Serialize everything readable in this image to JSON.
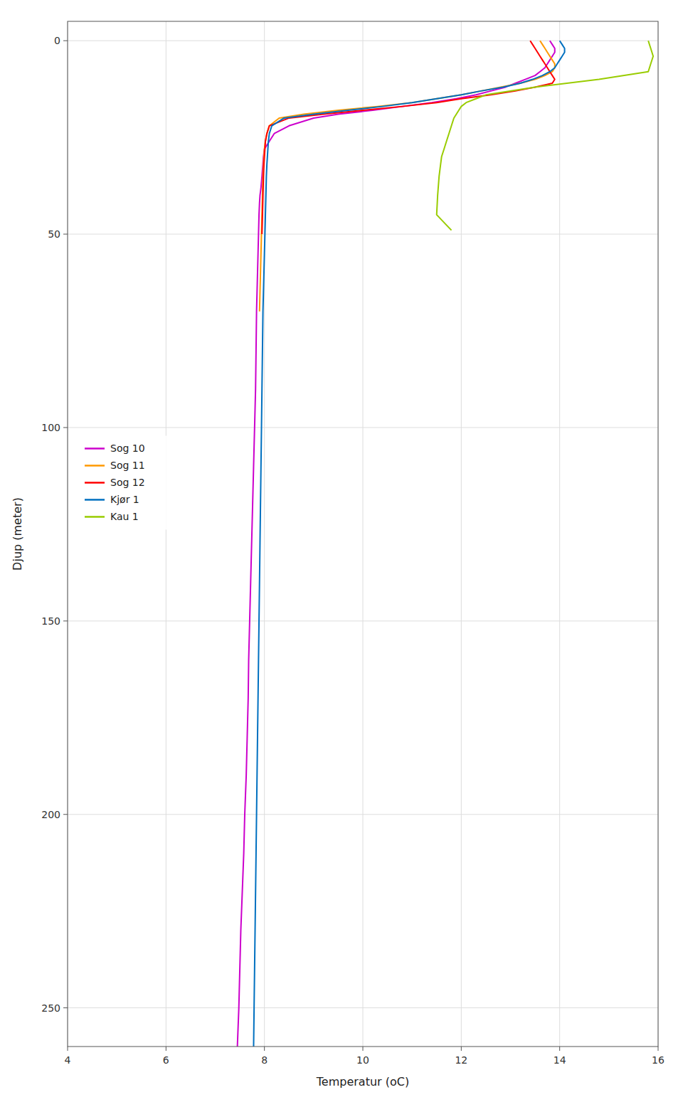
{
  "chart_data": {
    "type": "line",
    "xlabel": "Temperatur (oC)",
    "ylabel": "Djup (meter)",
    "xlim": [
      4,
      16
    ],
    "ylim": [
      260,
      -5
    ],
    "xticks": [
      4,
      6,
      8,
      10,
      12,
      14,
      16
    ],
    "yticks": [
      0,
      50,
      100,
      150,
      200,
      250
    ],
    "grid": true,
    "legend": "left",
    "series": [
      {
        "name": "Sog 10",
        "color": "#cc00cc",
        "x": [
          13.8,
          13.85,
          13.9,
          13.9,
          13.85,
          13.8,
          13.75,
          13.7,
          13.6,
          13.5,
          13.3,
          13.1,
          12.9,
          12.6,
          12.3,
          11.9,
          11.4,
          10.8,
          10.2,
          9.5,
          9.0,
          8.5,
          8.2,
          8.1,
          8.0,
          7.98,
          7.95,
          7.93,
          7.92,
          7.91,
          7.9,
          7.89,
          7.88,
          7.87,
          7.86,
          7.85,
          7.84,
          7.83,
          7.82,
          7.8,
          7.78,
          7.76,
          7.74,
          7.72,
          7.7,
          7.68,
          7.67,
          7.65,
          7.63,
          7.6,
          7.58,
          7.55,
          7.52,
          7.5,
          7.48,
          7.45
        ],
        "values": [
          0,
          1,
          2,
          3,
          4,
          5,
          6,
          7,
          8,
          9,
          10,
          11,
          12,
          13,
          14,
          15,
          16,
          17,
          18,
          19,
          20,
          22,
          24,
          26,
          28,
          30,
          35,
          38,
          39,
          40,
          42,
          45,
          50,
          55,
          60,
          65,
          70,
          80,
          90,
          100,
          110,
          120,
          130,
          140,
          150,
          160,
          170,
          180,
          190,
          200,
          210,
          220,
          230,
          240,
          250,
          260
        ]
      },
      {
        "name": "Sog 11",
        "color": "#ff9900",
        "x": [
          13.6,
          13.65,
          13.7,
          13.75,
          13.8,
          13.85,
          13.9,
          13.9,
          13.85,
          13.7,
          13.5,
          13.2,
          12.8,
          12.4,
          12.0,
          11.5,
          11.0,
          10.3,
          9.5,
          8.8,
          8.3,
          8.1,
          8.05,
          8.02,
          8.0,
          7.99,
          7.98,
          7.97,
          7.96,
          7.95,
          7.94,
          7.93,
          7.92,
          7.91,
          7.9
        ],
        "values": [
          0,
          1,
          2,
          3,
          4,
          5,
          6,
          7,
          8,
          9,
          10,
          11,
          12,
          13,
          14,
          15,
          16,
          17,
          18,
          19,
          20,
          22,
          24,
          26,
          28,
          30,
          32,
          35,
          40,
          45,
          50,
          55,
          60,
          65,
          70
        ]
      },
      {
        "name": "Sog 12",
        "color": "#ff0000",
        "x": [
          13.4,
          13.45,
          13.5,
          13.55,
          13.6,
          13.65,
          13.7,
          13.75,
          13.8,
          13.85,
          13.9,
          13.85,
          13.5,
          13.1,
          12.6,
          12.0,
          11.5,
          10.8,
          10.0,
          9.2,
          8.5,
          8.1,
          8.05,
          8.02,
          8.01,
          8.0,
          7.99,
          7.98,
          7.97,
          7.96,
          7.95
        ],
        "values": [
          0,
          1,
          2,
          3,
          4,
          5,
          6,
          7,
          8,
          9,
          10,
          11,
          12,
          13,
          14,
          15,
          16,
          17,
          18,
          19,
          20,
          22,
          24,
          26,
          28,
          30,
          32,
          35,
          40,
          45,
          50
        ]
      },
      {
        "name": "Kjør 1",
        "color": "#0070c0",
        "x": [
          14.0,
          14.05,
          14.1,
          14.1,
          14.05,
          14.0,
          13.95,
          13.9,
          13.8,
          13.65,
          13.45,
          13.2,
          12.85,
          12.4,
          12.0,
          11.5,
          11.0,
          10.4,
          9.7,
          9.0,
          8.4,
          8.15,
          8.1,
          8.08,
          8.07,
          8.06,
          8.05,
          8.04,
          8.03,
          8.02,
          8.01,
          8.0,
          7.99,
          7.98,
          7.97,
          7.96,
          7.95,
          7.94,
          7.93,
          7.92,
          7.91,
          7.9,
          7.89,
          7.88,
          7.87,
          7.86,
          7.85,
          7.84,
          7.83,
          7.82,
          7.81,
          7.8,
          7.79,
          7.78
        ],
        "values": [
          0,
          1,
          2,
          3,
          4,
          5,
          6,
          7,
          8,
          9,
          10,
          11,
          12,
          13,
          14,
          15,
          16,
          17,
          18,
          19,
          20,
          22,
          24,
          26,
          28,
          30,
          32,
          35,
          40,
          45,
          50,
          55,
          60,
          65,
          70,
          80,
          90,
          100,
          110,
          120,
          130,
          140,
          150,
          160,
          170,
          180,
          190,
          200,
          210,
          220,
          230,
          240,
          250,
          260
        ]
      },
      {
        "name": "Kau 1",
        "color": "#99cc00",
        "x": [
          15.8,
          15.85,
          15.9,
          15.85,
          15.8,
          14.8,
          13.5,
          12.5,
          12.3,
          12.1,
          12.0,
          11.95,
          11.9,
          11.85,
          11.8,
          11.75,
          11.7,
          11.65,
          11.6,
          11.58,
          11.55,
          11.52,
          11.5,
          11.8
        ],
        "values": [
          0,
          2,
          4,
          6,
          8,
          10,
          12,
          14,
          15,
          16,
          17,
          18,
          19,
          20,
          22,
          24,
          26,
          28,
          30,
          32,
          35,
          40,
          45,
          49
        ]
      }
    ]
  }
}
